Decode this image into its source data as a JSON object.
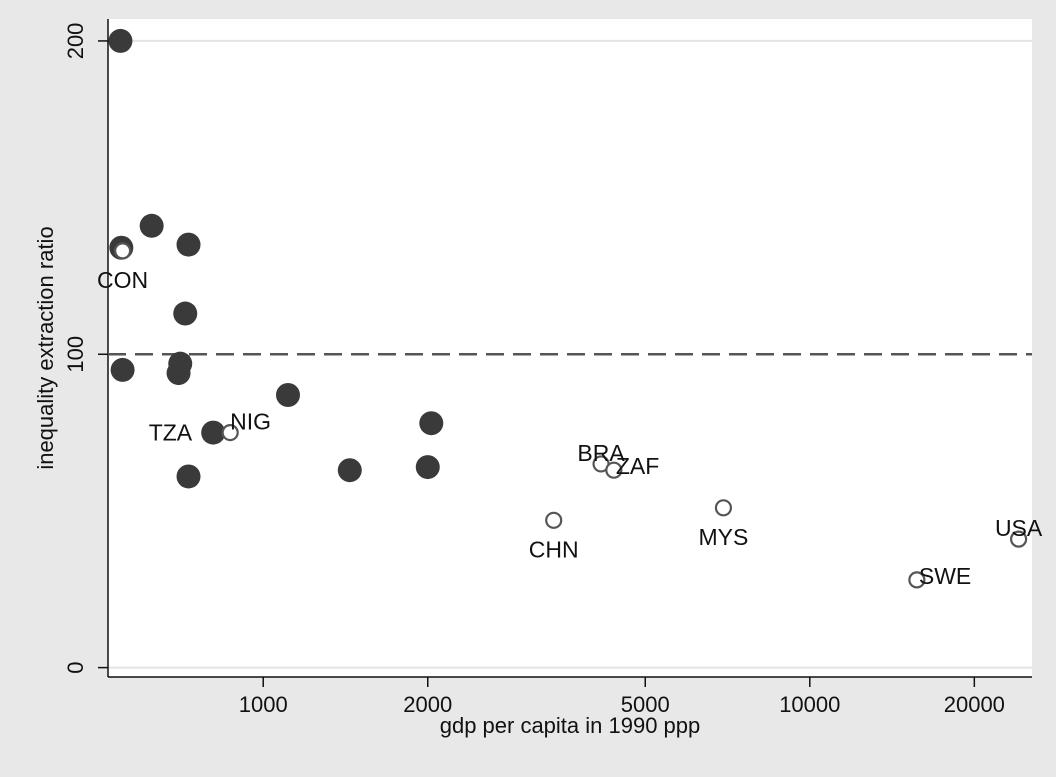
{
  "chart_data": {
    "type": "scatter",
    "title": "",
    "xlabel": "gdp per capita in 1990 ppp",
    "ylabel": "inequality extraction ratio",
    "x_scale": "log",
    "xlim": [
      520,
      25500
    ],
    "ylim": [
      -3,
      207
    ],
    "x_ticks": [
      1000,
      2000,
      5000,
      10000,
      20000
    ],
    "y_ticks": [
      0,
      100,
      200
    ],
    "grid": "horizontal",
    "reference_line": {
      "y": 100,
      "style": "dashed"
    },
    "legend": "none",
    "series": [
      {
        "marker": "filled-circle",
        "color": "#3a3a3a",
        "points": [
          {
            "x": 548,
            "y": 200
          },
          {
            "x": 550,
            "y": 134
          },
          {
            "x": 553,
            "y": 95
          },
          {
            "x": 625,
            "y": 141
          },
          {
            "x": 730,
            "y": 135
          },
          {
            "x": 720,
            "y": 113
          },
          {
            "x": 705,
            "y": 97
          },
          {
            "x": 700,
            "y": 94
          },
          {
            "x": 730,
            "y": 61
          },
          {
            "x": 810,
            "y": 75
          },
          {
            "x": 1110,
            "y": 87
          },
          {
            "x": 1440,
            "y": 63
          },
          {
            "x": 2000,
            "y": 64
          },
          {
            "x": 2030,
            "y": 78
          }
        ]
      },
      {
        "marker": "hollow-circle",
        "color": "#555555",
        "points": [
          {
            "x": 553,
            "y": 133,
            "label": "CON",
            "label_pos": "below"
          },
          {
            "x": 870,
            "y": 75,
            "label": "TZA",
            "label_pos": "left"
          },
          {
            "x": 870,
            "y": 75,
            "label": "NIG",
            "label_pos": "upper-right"
          },
          {
            "x": 3400,
            "y": 47,
            "label": "CHN",
            "label_pos": "below"
          },
          {
            "x": 4150,
            "y": 65,
            "label": "BRA",
            "label_pos": "above"
          },
          {
            "x": 4380,
            "y": 63,
            "label": "ZAF",
            "label_pos": "right"
          },
          {
            "x": 6950,
            "y": 51,
            "label": "MYS",
            "label_pos": "below"
          },
          {
            "x": 15700,
            "y": 28,
            "label": "SWE",
            "label_pos": "right"
          },
          {
            "x": 24100,
            "y": 41,
            "label": "USA",
            "label_pos": "above"
          }
        ]
      }
    ]
  }
}
